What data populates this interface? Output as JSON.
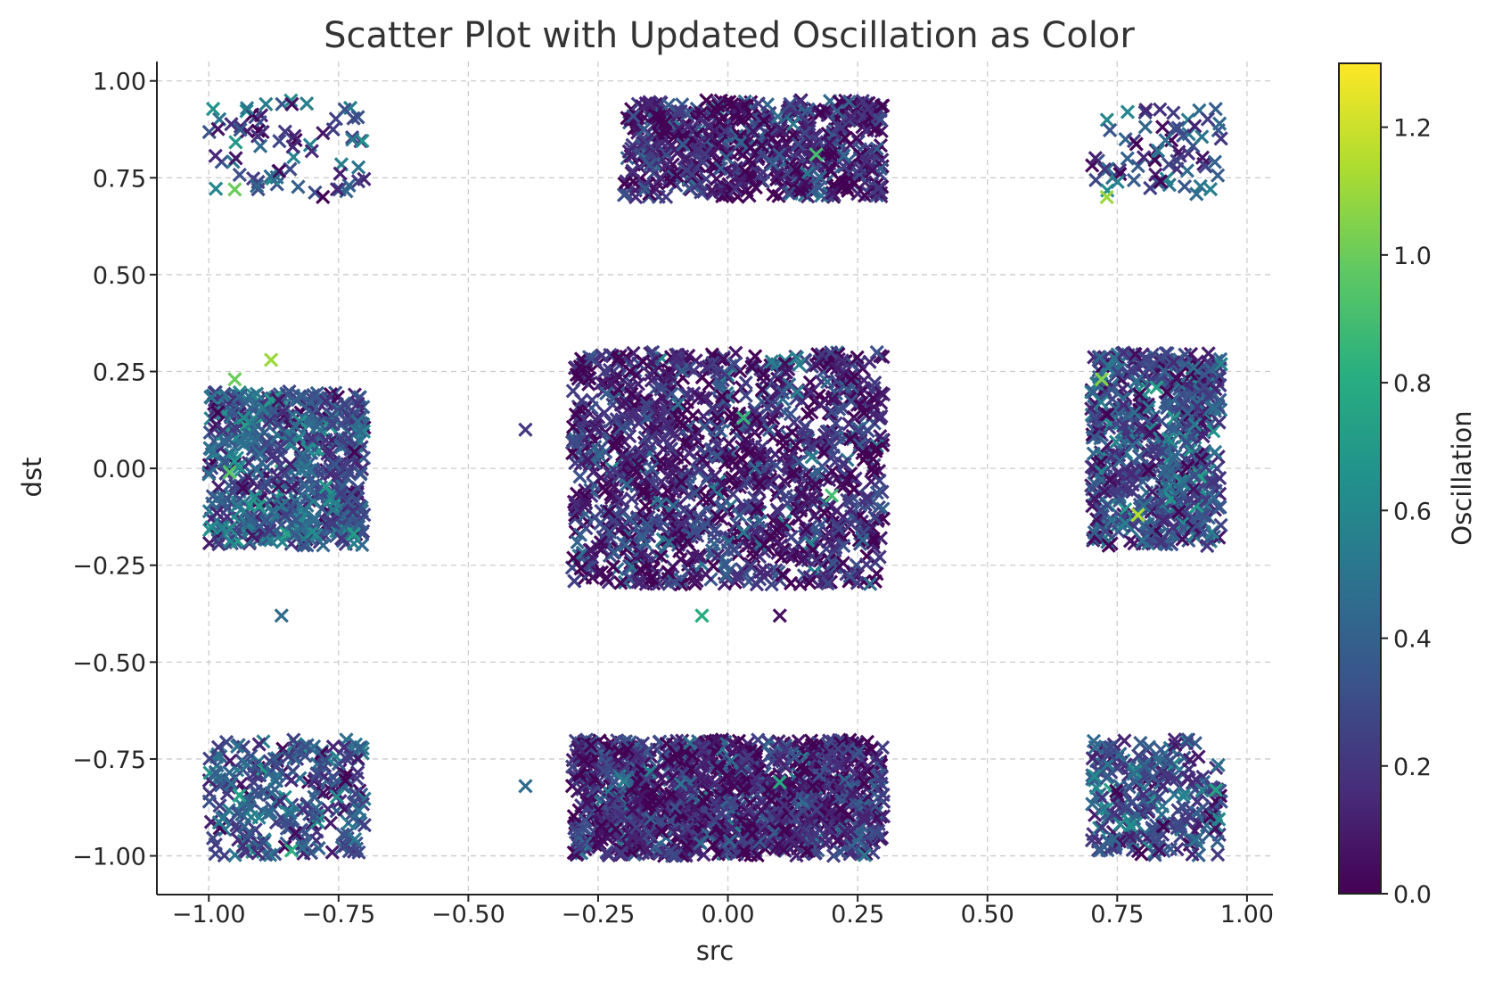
{
  "chart_data": {
    "type": "scatter",
    "title": "Scatter Plot with Updated Oscillation as Color",
    "xlabel": "src",
    "ylabel": "dst",
    "xlim": [
      -1.1,
      1.05
    ],
    "ylim": [
      -1.1,
      1.05
    ],
    "xticks": [
      -1.0,
      -0.75,
      -0.5,
      -0.25,
      0.0,
      0.25,
      0.5,
      0.75,
      1.0
    ],
    "xtick_labels": [
      "−1.00",
      "−0.75",
      "−0.50",
      "−0.25",
      "0.00",
      "0.25",
      "0.50",
      "0.75",
      "1.00"
    ],
    "yticks": [
      1.0,
      0.75,
      0.5,
      0.25,
      0.0,
      -0.25,
      -0.5,
      -0.75,
      -1.0
    ],
    "ytick_labels": [
      "1.00",
      "0.75",
      "0.50",
      "0.25",
      "0.00",
      "−0.25",
      "−0.50",
      "−0.75",
      "−1.00"
    ],
    "grid": true,
    "marker": "x",
    "colormap": "viridis",
    "colorbar": {
      "label": "Oscillation",
      "range": [
        0.0,
        1.3
      ],
      "ticks": [
        0.0,
        0.2,
        0.4,
        0.6,
        0.8,
        1.0,
        1.2
      ],
      "tick_labels": [
        "0.0",
        "0.2",
        "0.4",
        "0.6",
        "0.8",
        "1.0",
        "1.2"
      ]
    },
    "clusters": [
      {
        "x": [
          -1.0,
          -0.7
        ],
        "y": [
          -0.2,
          0.2
        ],
        "oscillation_mean": 0.35,
        "density": "high"
      },
      {
        "x": [
          -1.0,
          -0.7
        ],
        "y": [
          0.7,
          0.95
        ],
        "oscillation_mean": 0.3,
        "density": "low"
      },
      {
        "x": [
          -1.0,
          -0.7
        ],
        "y": [
          -1.0,
          -0.7
        ],
        "oscillation_mean": 0.35,
        "density": "medium"
      },
      {
        "x": [
          -0.3,
          0.3
        ],
        "y": [
          -0.3,
          0.3
        ],
        "oscillation_mean": 0.15,
        "density": "very high"
      },
      {
        "x": [
          -0.2,
          0.3
        ],
        "y": [
          0.7,
          0.95
        ],
        "oscillation_mean": 0.15,
        "density": "high"
      },
      {
        "x": [
          -0.3,
          0.3
        ],
        "y": [
          -1.0,
          -0.7
        ],
        "oscillation_mean": 0.15,
        "density": "very high"
      },
      {
        "x": [
          0.7,
          0.95
        ],
        "y": [
          -0.2,
          0.3
        ],
        "oscillation_mean": 0.3,
        "density": "high"
      },
      {
        "x": [
          0.7,
          0.95
        ],
        "y": [
          0.7,
          0.93
        ],
        "oscillation_mean": 0.3,
        "density": "low"
      },
      {
        "x": [
          0.7,
          0.95
        ],
        "y": [
          -1.0,
          -0.7
        ],
        "oscillation_mean": 0.3,
        "density": "medium"
      }
    ],
    "points": [
      {
        "x": -0.88,
        "y": 0.28,
        "c": 1.1
      },
      {
        "x": -0.95,
        "y": 0.23,
        "c": 1.0
      },
      {
        "x": -0.95,
        "y": 0.72,
        "c": 1.0
      },
      {
        "x": -0.86,
        "y": -0.38,
        "c": 0.45
      },
      {
        "x": -0.39,
        "y": -0.82,
        "c": 0.45
      },
      {
        "x": -0.39,
        "y": 0.1,
        "c": 0.2
      },
      {
        "x": -0.05,
        "y": -0.38,
        "c": 0.8
      },
      {
        "x": 0.1,
        "y": -0.38,
        "c": 0.05
      },
      {
        "x": 0.79,
        "y": -0.12,
        "c": 1.15
      },
      {
        "x": 0.72,
        "y": 0.23,
        "c": 1.05
      },
      {
        "x": 0.73,
        "y": 0.7,
        "c": 1.1
      },
      {
        "x": 0.77,
        "y": 0.92,
        "c": 0.6
      },
      {
        "x": 0.94,
        "y": -0.83,
        "c": 0.75
      },
      {
        "x": -0.89,
        "y": 0.94,
        "c": 0.55
      },
      {
        "x": -0.84,
        "y": 0.94,
        "c": 0.05
      },
      {
        "x": 0.12,
        "y": 0.94,
        "c": 0.3
      },
      {
        "x": 0.2,
        "y": -0.07,
        "c": 0.9
      },
      {
        "x": -0.96,
        "y": -0.01,
        "c": 0.95
      },
      {
        "x": 0.1,
        "y": -0.81,
        "c": 0.8
      },
      {
        "x": 0.17,
        "y": 0.81,
        "c": 0.9
      },
      {
        "x": 0.03,
        "y": 0.13,
        "c": 0.85
      }
    ]
  }
}
